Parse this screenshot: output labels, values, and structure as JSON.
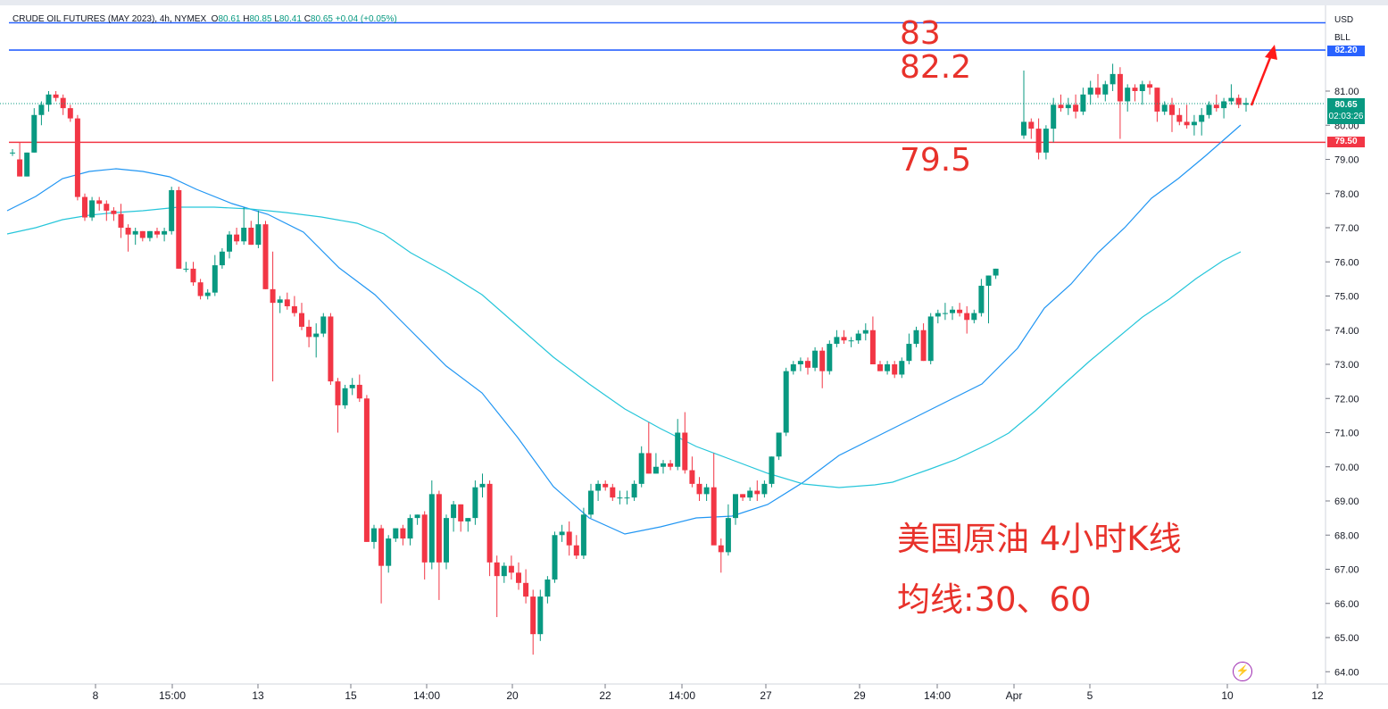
{
  "header": {
    "symbol": "CRUDE OIL FUTURES (MAY 2023)",
    "interval": "4h",
    "exchange": "NYMEX",
    "open_label": "O",
    "open": "80.61",
    "high_label": "H",
    "high": "80.85",
    "low_label": "L",
    "low": "80.41",
    "close_label": "C",
    "close": "80.65",
    "change": "+0.04 (+0.05%)"
  },
  "axis": {
    "currency": "USD",
    "indicator": "BLL",
    "bll_value": "82.20",
    "current_price": "80.65",
    "countdown": "02:03:26",
    "support_price": "79.50"
  },
  "annotations": {
    "level_83": "83",
    "level_822": "82.2",
    "level_795": "79.5",
    "title_line1": "美国原油 4小时K线",
    "title_line2": "均线:30、60"
  },
  "colors": {
    "up": "#089981",
    "down": "#f23645",
    "ma30": "#2196f3",
    "ma60": "#26c6da",
    "line_blue": "#2962ff",
    "line_red": "#f23645",
    "annotation": "#e8322b"
  },
  "chart_data": {
    "type": "candlestick",
    "y_axis": {
      "ticks": [
        "81.00",
        "80.00",
        "79.00",
        "78.00",
        "77.00",
        "76.00",
        "75.00",
        "74.00",
        "73.00",
        "72.00",
        "71.00",
        "70.00",
        "69.00",
        "68.00",
        "67.00",
        "66.00",
        "65.00",
        "64.00"
      ],
      "range": [
        63.8,
        83.3
      ]
    },
    "x_axis": {
      "ticks": [
        "8",
        "15:00",
        "13",
        "15",
        "14:00",
        "20",
        "22",
        "14:00",
        "27",
        "29",
        "14:00",
        "Apr",
        "5",
        "10",
        "12"
      ]
    },
    "horizontal_lines": [
      {
        "price": 83.0,
        "color": "#2962ff"
      },
      {
        "price": 82.2,
        "color": "#2962ff"
      },
      {
        "price": 79.5,
        "color": "#f23645"
      }
    ],
    "candles_segment1": [
      [
        79.2,
        79.3,
        79.1,
        79.2
      ],
      [
        79.0,
        79.5,
        78.5,
        78.5
      ],
      [
        78.5,
        79.2,
        78.5,
        79.2
      ],
      [
        79.2,
        80.5,
        79.2,
        80.3
      ],
      [
        80.3,
        80.7,
        80.0,
        80.6
      ],
      [
        80.6,
        81.0,
        80.4,
        80.9
      ],
      [
        80.9,
        81.0,
        80.7,
        80.8
      ],
      [
        80.8,
        80.9,
        80.3,
        80.5
      ],
      [
        80.5,
        80.6,
        80.1,
        80.2
      ],
      [
        80.2,
        80.3,
        77.8,
        77.9
      ],
      [
        77.9,
        78.0,
        77.2,
        77.3
      ],
      [
        77.3,
        77.9,
        77.2,
        77.8
      ],
      [
        77.8,
        77.9,
        77.5,
        77.7
      ],
      [
        77.7,
        77.8,
        77.2,
        77.5
      ],
      [
        77.5,
        77.6,
        77.2,
        77.4
      ],
      [
        77.4,
        77.7,
        76.7,
        77.0
      ],
      [
        77.0,
        77.1,
        76.3,
        76.8
      ],
      [
        76.8,
        77.0,
        76.5,
        76.9
      ],
      [
        76.9,
        76.9,
        76.6,
        76.7
      ],
      [
        76.7,
        76.9,
        76.6,
        76.9
      ],
      [
        76.9,
        77.0,
        76.7,
        76.8
      ],
      [
        76.8,
        77.0,
        76.6,
        76.9
      ],
      [
        76.9,
        78.2,
        76.8,
        78.1
      ],
      [
        78.1,
        78.2,
        75.8,
        75.8
      ],
      [
        75.8,
        76.0,
        75.7,
        75.8
      ],
      [
        75.8,
        76.0,
        75.3,
        75.4
      ],
      [
        75.4,
        75.5,
        74.9,
        75.0
      ],
      [
        75.0,
        75.2,
        74.9,
        75.1
      ],
      [
        75.1,
        76.2,
        75.0,
        75.9
      ],
      [
        75.9,
        76.4,
        75.8,
        76.3
      ],
      [
        76.3,
        76.9,
        76.1,
        76.8
      ],
      [
        76.8,
        77.0,
        76.5,
        76.6
      ],
      [
        76.6,
        77.6,
        76.5,
        77.0
      ],
      [
        77.0,
        77.2,
        76.5,
        76.5
      ],
      [
        76.5,
        77.5,
        76.4,
        77.1
      ],
      [
        77.1,
        77.2,
        75.2,
        75.2
      ],
      [
        75.2,
        76.3,
        72.5,
        74.8
      ],
      [
        74.8,
        75.0,
        74.5,
        74.9
      ],
      [
        74.9,
        75.1,
        74.6,
        74.7
      ],
      [
        74.7,
        75.0,
        74.4,
        74.5
      ],
      [
        74.5,
        74.8,
        74.0,
        74.1
      ],
      [
        74.1,
        74.3,
        73.5,
        73.8
      ],
      [
        73.8,
        74.2,
        73.2,
        73.9
      ],
      [
        73.9,
        74.5,
        73.8,
        74.4
      ],
      [
        74.4,
        74.5,
        72.4,
        72.5
      ],
      [
        72.5,
        72.6,
        71.0,
        71.8
      ],
      [
        71.8,
        72.4,
        71.7,
        72.3
      ],
      [
        72.3,
        72.6,
        72.1,
        72.4
      ],
      [
        72.4,
        72.7,
        71.9,
        72.0
      ],
      [
        72.0,
        72.1,
        67.8,
        67.8
      ],
      [
        67.8,
        68.3,
        67.6,
        68.2
      ],
      [
        68.2,
        68.3,
        66.0,
        67.1
      ],
      [
        67.1,
        68.0,
        66.9,
        67.9
      ],
      [
        67.9,
        68.2,
        67.8,
        68.2
      ],
      [
        68.2,
        68.3,
        67.7,
        67.9
      ],
      [
        67.9,
        68.6,
        67.7,
        68.5
      ],
      [
        68.5,
        68.6,
        68.3,
        68.6
      ],
      [
        68.6,
        68.7,
        66.7,
        67.2
      ],
      [
        67.2,
        69.6,
        67.0,
        69.2
      ],
      [
        69.2,
        69.3,
        66.1,
        67.2
      ],
      [
        67.2,
        68.6,
        67.0,
        68.5
      ],
      [
        68.5,
        69.0,
        68.1,
        68.9
      ],
      [
        68.9,
        68.9,
        68.1,
        68.4
      ],
      [
        68.4,
        68.5,
        68.1,
        68.5
      ],
      [
        68.5,
        69.6,
        68.3,
        69.4
      ],
      [
        69.4,
        69.8,
        69.1,
        69.5
      ],
      [
        69.5,
        69.6,
        66.8,
        67.2
      ],
      [
        67.2,
        67.4,
        65.6,
        66.8
      ],
      [
        66.8,
        67.2,
        66.6,
        67.1
      ],
      [
        67.1,
        67.4,
        66.7,
        66.9
      ],
      [
        66.9,
        67.2,
        66.4,
        66.6
      ],
      [
        66.6,
        67.0,
        66.0,
        66.2
      ],
      [
        66.2,
        66.4,
        64.5,
        65.1
      ],
      [
        65.1,
        66.4,
        64.9,
        66.2
      ],
      [
        66.2,
        66.8,
        66.0,
        66.7
      ],
      [
        66.7,
        68.1,
        66.6,
        68.0
      ],
      [
        68.0,
        68.3,
        67.8,
        68.1
      ],
      [
        68.1,
        68.4,
        67.4,
        67.7
      ],
      [
        67.7,
        68.0,
        67.3,
        67.4
      ],
      [
        67.4,
        68.8,
        67.3,
        68.6
      ],
      [
        68.6,
        69.5,
        68.5,
        69.3
      ],
      [
        69.3,
        69.6,
        69.0,
        69.5
      ],
      [
        69.5,
        69.6,
        69.3,
        69.4
      ],
      [
        69.4,
        69.5,
        69.0,
        69.1
      ],
      [
        69.1,
        69.3,
        68.9,
        69.1
      ],
      [
        69.1,
        69.3,
        68.9,
        69.1
      ],
      [
        69.1,
        69.6,
        69.0,
        69.5
      ],
      [
        69.5,
        70.6,
        69.4,
        70.4
      ],
      [
        70.4,
        71.3,
        69.8,
        69.8
      ],
      [
        69.8,
        70.4,
        69.8,
        70.0
      ],
      [
        70.0,
        70.2,
        69.8,
        70.1
      ],
      [
        70.1,
        70.2,
        69.9,
        70.0
      ],
      [
        70.0,
        71.4,
        69.9,
        71.0
      ],
      [
        71.0,
        71.6,
        69.8,
        69.9
      ],
      [
        69.9,
        70.3,
        69.4,
        69.5
      ],
      [
        69.5,
        69.7,
        69.0,
        69.2
      ],
      [
        69.2,
        69.5,
        69.0,
        69.4
      ],
      [
        69.4,
        70.4,
        68.6,
        67.7
      ],
      [
        67.7,
        67.9,
        66.9,
        67.5
      ],
      [
        67.5,
        68.9,
        67.4,
        68.5
      ],
      [
        68.5,
        69.1,
        68.3,
        69.2
      ],
      [
        69.2,
        69.2,
        69.0,
        69.1
      ],
      [
        69.1,
        69.4,
        69.0,
        69.3
      ],
      [
        69.3,
        69.6,
        69.0,
        69.2
      ],
      [
        69.2,
        69.6,
        69.1,
        69.5
      ],
      [
        69.5,
        70.3,
        69.4,
        70.3
      ],
      [
        70.3,
        71.0,
        70.2,
        71.0
      ],
      [
        71.0,
        72.9,
        70.9,
        72.8
      ],
      [
        72.8,
        73.1,
        72.7,
        73.0
      ],
      [
        73.0,
        73.2,
        72.8,
        73.1
      ],
      [
        73.1,
        73.2,
        72.7,
        72.9
      ],
      [
        72.9,
        73.5,
        72.8,
        73.4
      ],
      [
        73.4,
        73.5,
        72.3,
        72.8
      ],
      [
        72.8,
        73.7,
        72.7,
        73.6
      ],
      [
        73.6,
        74.0,
        73.5,
        73.8
      ],
      [
        73.8,
        74.0,
        73.6,
        73.7
      ],
      [
        73.7,
        73.8,
        73.5,
        73.7
      ],
      [
        73.7,
        74.0,
        73.6,
        73.9
      ],
      [
        73.9,
        74.2,
        73.7,
        74.0
      ],
      [
        74.0,
        74.4,
        73.1,
        73.0
      ],
      [
        73.0,
        73.1,
        72.8,
        72.8
      ],
      [
        72.8,
        73.1,
        72.7,
        73.0
      ],
      [
        73.0,
        73.1,
        72.6,
        72.7
      ],
      [
        72.7,
        73.2,
        72.6,
        73.1
      ],
      [
        73.1,
        73.9,
        73.0,
        73.6
      ],
      [
        73.6,
        74.1,
        73.5,
        74.0
      ],
      [
        74.0,
        74.2,
        73.1,
        73.1
      ],
      [
        73.1,
        74.5,
        73.0,
        74.4
      ],
      [
        74.4,
        74.6,
        74.2,
        74.5
      ],
      [
        74.5,
        74.8,
        74.3,
        74.5
      ],
      [
        74.5,
        74.7,
        74.3,
        74.6
      ],
      [
        74.6,
        74.8,
        74.4,
        74.5
      ],
      [
        74.5,
        74.7,
        73.9,
        74.3
      ],
      [
        74.3,
        74.6,
        74.2,
        74.5
      ],
      [
        74.5,
        75.5,
        74.4,
        75.3
      ],
      [
        75.3,
        75.6,
        74.2,
        75.6
      ],
      [
        75.6,
        75.8,
        75.5,
        75.8
      ]
    ],
    "candles_segment2": [
      [
        79.7,
        81.6,
        79.6,
        80.1
      ],
      [
        80.1,
        80.2,
        79.6,
        79.9
      ],
      [
        79.9,
        80.2,
        79.0,
        79.2
      ],
      [
        79.2,
        80.0,
        79.0,
        79.9
      ],
      [
        79.9,
        80.8,
        79.5,
        80.6
      ],
      [
        80.6,
        80.9,
        80.4,
        80.5
      ],
      [
        80.5,
        80.8,
        80.3,
        80.6
      ],
      [
        80.6,
        80.9,
        80.2,
        80.4
      ],
      [
        80.4,
        81.1,
        80.3,
        80.9
      ],
      [
        80.9,
        81.3,
        80.6,
        81.1
      ],
      [
        81.1,
        81.5,
        80.8,
        80.9
      ],
      [
        80.9,
        81.3,
        80.7,
        81.2
      ],
      [
        81.2,
        81.8,
        81.0,
        81.5
      ],
      [
        81.5,
        81.7,
        79.6,
        80.7
      ],
      [
        80.7,
        81.2,
        80.4,
        81.1
      ],
      [
        81.1,
        81.2,
        80.7,
        81.0
      ],
      [
        81.0,
        81.3,
        80.6,
        81.2
      ],
      [
        81.2,
        81.3,
        80.9,
        81.1
      ],
      [
        81.1,
        81.1,
        80.1,
        80.4
      ],
      [
        80.4,
        80.7,
        80.3,
        80.6
      ],
      [
        80.6,
        80.8,
        79.8,
        80.3
      ],
      [
        80.3,
        80.5,
        80.0,
        80.1
      ],
      [
        80.1,
        80.6,
        79.9,
        80.0
      ],
      [
        80.0,
        80.3,
        79.7,
        80.1
      ],
      [
        80.1,
        80.5,
        79.7,
        80.3
      ],
      [
        80.3,
        80.7,
        80.2,
        80.6
      ],
      [
        80.6,
        80.9,
        80.4,
        80.5
      ],
      [
        80.5,
        80.8,
        80.2,
        80.7
      ],
      [
        80.7,
        81.2,
        80.6,
        80.8
      ],
      [
        80.8,
        80.9,
        80.5,
        80.6
      ],
      [
        80.6,
        80.8,
        80.4,
        80.65
      ]
    ]
  }
}
